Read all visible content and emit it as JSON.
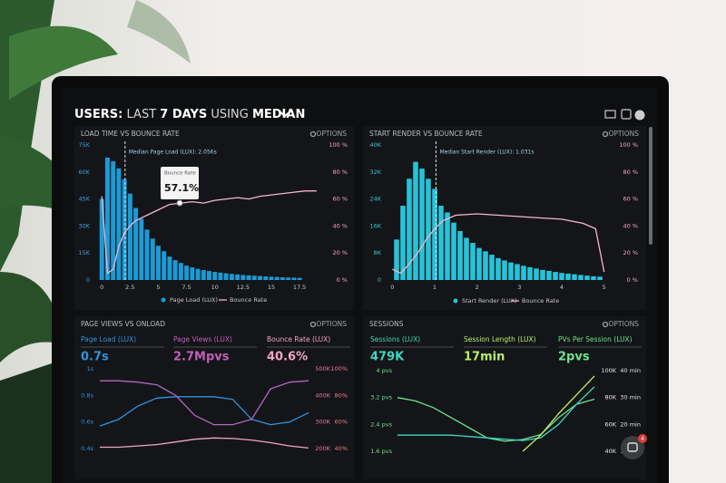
{
  "header": {
    "title": [
      "USERS:",
      "LAST",
      "7 DAYS",
      "USING",
      "MEDIAN"
    ]
  },
  "chat": {
    "badge": "4"
  },
  "panels": [
    {
      "title": "LOAD TIME VS BOUNCE RATE",
      "options": "OPTIONS",
      "xaxis": {
        "lim": [
          -0.5,
          19.5
        ],
        "ticks": [
          0,
          2.5,
          5,
          7.5,
          10,
          12.5,
          15,
          17.5
        ]
      },
      "scales": {
        "left": {
          "color": "#3aa6e0",
          "lim": [
            0,
            75000
          ],
          "ticks": [
            0,
            {
              "value": 15000,
              "label": "15K"
            },
            {
              "value": 30000,
              "label": "30K"
            },
            {
              "value": 45000,
              "label": "45K"
            },
            {
              "value": 60000,
              "label": "60K"
            },
            {
              "value": 75000,
              "label": "75K"
            }
          ]
        },
        "right": {
          "color": "#f2a6c0",
          "lim": [
            0,
            100
          ],
          "ticks": [
            {
              "value": 0,
              "label": "0 %"
            },
            {
              "value": 20,
              "label": "20 %"
            },
            {
              "value": 40,
              "label": "40 %"
            },
            {
              "value": 60,
              "label": "60 %"
            },
            {
              "value": 80,
              "label": "80 %"
            },
            {
              "value": 100,
              "label": "100 %"
            }
          ]
        }
      },
      "median": {
        "value": 2.056,
        "label": "Median Page Load (LUX): 2.056s"
      },
      "tooltip": {
        "label": "Bounce Rate",
        "value": "57.1%"
      },
      "bars": {
        "name": "Page Load (LUX)",
        "color": "#1c9ad6",
        "axis": "left",
        "x": [
          0,
          0.5,
          1,
          1.5,
          2,
          2.5,
          3,
          3.5,
          4,
          4.5,
          5,
          5.5,
          6,
          6.5,
          7,
          7.5,
          8,
          8.5,
          9,
          9.5,
          10,
          10.5,
          11,
          11.5,
          12,
          12.5,
          13,
          13.5,
          14,
          14.5,
          15,
          15.5,
          16,
          16.5,
          17,
          17.5
        ],
        "values": [
          45000,
          68000,
          66000,
          62000,
          56000,
          48000,
          40000,
          34000,
          28000,
          23000,
          19000,
          16000,
          13000,
          11000,
          9500,
          8000,
          7000,
          6200,
          5500,
          5000,
          4500,
          4100,
          3700,
          3400,
          3100,
          2800,
          2600,
          2400,
          2200,
          2000,
          1800,
          1700,
          1500,
          1400,
          1300,
          1200
        ]
      },
      "series": [
        {
          "name": "Bounce Rate",
          "color": "#f2b8cc",
          "axis": "right",
          "x": [
            0,
            0.5,
            1,
            1.5,
            2,
            2.5,
            3,
            4,
            5,
            6,
            7,
            8,
            9,
            10,
            11,
            12,
            13,
            14,
            15,
            16,
            17,
            18,
            19
          ],
          "values": [
            62,
            5,
            8,
            25,
            35,
            40,
            44,
            48,
            52,
            56,
            57,
            58,
            57,
            59,
            60,
            61,
            60,
            62,
            63,
            64,
            65,
            66,
            66
          ]
        }
      ]
    },
    {
      "title": "START RENDER VS BOUNCE RATE",
      "options": "OPTIONS",
      "xaxis": {
        "lim": [
          -0.2,
          5.2
        ],
        "ticks": [
          0,
          1,
          2,
          3,
          4,
          5
        ]
      },
      "scales": {
        "left": {
          "color": "#36c6d8",
          "lim": [
            0,
            40000
          ],
          "ticks": [
            0,
            {
              "value": 8000,
              "label": "8K"
            },
            {
              "value": 16000,
              "label": "16K"
            },
            {
              "value": 24000,
              "label": "24K"
            },
            {
              "value": 32000,
              "label": "32K"
            },
            {
              "value": 40000,
              "label": "40K"
            }
          ]
        },
        "right": {
          "color": "#f2a6c0",
          "lim": [
            0,
            100
          ],
          "ticks": [
            {
              "value": 0,
              "label": "0 %"
            },
            {
              "value": 20,
              "label": "20 %"
            },
            {
              "value": 40,
              "label": "40 %"
            },
            {
              "value": 60,
              "label": "60 %"
            },
            {
              "value": 80,
              "label": "80 %"
            },
            {
              "value": 100,
              "label": "100 %"
            }
          ]
        }
      },
      "median": {
        "value": 1.031,
        "label": "Median Start Render (LUX): 1.031s"
      },
      "bars": {
        "name": "Start Render (LUX)",
        "color": "#27c3d8",
        "axis": "left",
        "x": [
          0.1,
          0.25,
          0.4,
          0.55,
          0.7,
          0.85,
          1.0,
          1.15,
          1.3,
          1.45,
          1.6,
          1.75,
          1.9,
          2.05,
          2.2,
          2.35,
          2.5,
          2.65,
          2.8,
          2.95,
          3.1,
          3.25,
          3.4,
          3.55,
          3.7,
          3.85,
          4.0,
          4.15,
          4.3,
          4.45,
          4.6,
          4.75,
          4.9
        ],
        "values": [
          12000,
          22000,
          30000,
          35000,
          33000,
          30000,
          27000,
          22000,
          20000,
          17000,
          14500,
          12500,
          11000,
          9500,
          8500,
          7500,
          6500,
          5800,
          5200,
          4700,
          4200,
          3800,
          3400,
          3000,
          2700,
          2400,
          2100,
          1900,
          1700,
          1500,
          1300,
          1100,
          1000
        ]
      },
      "series": [
        {
          "name": "Bounce Rate",
          "color": "#f2b8cc",
          "axis": "right",
          "x": [
            0,
            0.2,
            0.4,
            0.6,
            0.8,
            1.0,
            1.2,
            1.5,
            2,
            2.5,
            3,
            3.5,
            4,
            4.5,
            4.8,
            5
          ],
          "values": [
            8,
            5,
            12,
            20,
            30,
            38,
            44,
            48,
            49,
            48,
            47,
            46,
            45,
            42,
            38,
            6
          ]
        }
      ]
    },
    {
      "title": "PAGE VIEWS VS ONLOAD",
      "options": "OPTIONS",
      "metrics": [
        {
          "name": "Page Load (LUX)",
          "value": "0.7s",
          "color": "#2f93e0"
        },
        {
          "name": "Page Views (LUX)",
          "value": "2.7Mpvs",
          "color": "#c060b8"
        },
        {
          "name": "Bounce Rate (LUX)",
          "value": "40.6%",
          "color": "#f2a6c0"
        }
      ],
      "scales": {
        "left": {
          "color": "#2f93e0",
          "lim": [
            0.4,
            1
          ],
          "ticks": [
            {
              "value": 1,
              "label": "1s"
            },
            {
              "value": 0.8,
              "label": "0.8s"
            },
            {
              "value": 0.6,
              "label": "0.6s"
            },
            {
              "value": 0.4,
              "label": "0.4s"
            }
          ]
        },
        "right1": {
          "color": "#e77aa6",
          "lim": [
            200000,
            500000
          ],
          "ticks": [
            {
              "value": 500000,
              "label": "500K"
            },
            {
              "value": 400000,
              "label": "400K"
            },
            {
              "value": 300000,
              "label": "300K"
            },
            {
              "value": 200000,
              "label": "200K"
            }
          ]
        },
        "right2": {
          "color": "#f07c8e",
          "lim": [
            40,
            100
          ],
          "ticks": [
            {
              "value": 100,
              "label": "100%"
            },
            {
              "value": 80,
              "label": "80%"
            },
            {
              "value": 60,
              "label": "60%"
            },
            {
              "value": 40,
              "label": "40%"
            }
          ]
        }
      },
      "series": [
        {
          "color": "#2f93e0",
          "axis": "left",
          "values": [
            0.57,
            0.62,
            0.72,
            0.78,
            0.79,
            0.79,
            0.79,
            0.77,
            0.62,
            0.58,
            0.6,
            0.67
          ]
        },
        {
          "color": "#b466c4",
          "axis": "right2",
          "values": [
            91,
            91,
            90,
            88,
            80,
            65,
            58,
            58,
            62,
            85,
            90,
            91
          ]
        },
        {
          "color": "#f2a6c0",
          "axis": "right1",
          "values": [
            205000,
            205000,
            210000,
            215000,
            225000,
            235000,
            240000,
            238000,
            232000,
            222000,
            210000,
            202000
          ]
        }
      ]
    },
    {
      "title": "SESSIONS",
      "options": "OPTIONS",
      "metrics": [
        {
          "name": "Sessions (LUX)",
          "value": "479K",
          "color": "#3fd6c0"
        },
        {
          "name": "Session Length (LUX)",
          "value": "17min",
          "color": "#b8f06a"
        },
        {
          "name": "PVs Per Session (LUX)",
          "value": "2pvs",
          "color": "#6ce38e"
        }
      ],
      "scales": {
        "left": {
          "color": "#6ce38e",
          "lim": [
            1.6,
            4
          ],
          "ticks": [
            {
              "value": 4,
              "label": "4 pvs"
            },
            {
              "value": 3.2,
              "label": "3.2 pvs"
            },
            {
              "value": 2.4,
              "label": "2.4 pvs"
            },
            {
              "value": 1.6,
              "label": "1.6 pvs"
            }
          ]
        },
        "right1": {
          "color": "#e6e6e6",
          "lim": [
            40000,
            100000
          ],
          "ticks": [
            {
              "value": 100000,
              "label": "100K"
            },
            {
              "value": 80000,
              "label": "80K"
            },
            {
              "value": 60000,
              "label": "60K"
            },
            {
              "value": 40000,
              "label": "40K"
            }
          ]
        },
        "right2": {
          "color": "#e6e6e6",
          "lim": [
            10,
            40
          ],
          "ticks": [
            {
              "value": 40,
              "label": "40 min"
            },
            {
              "value": 30,
              "label": "30 min"
            },
            {
              "value": 20,
              "label": "20 min"
            },
            {
              "value": 10,
              "label": "10 min"
            }
          ]
        }
      },
      "series": [
        {
          "color": "#6ce38e",
          "axis": "left",
          "values": [
            3.2,
            3.1,
            2.9,
            2.6,
            2.3,
            2.0,
            1.9,
            1.95,
            2.1,
            2.6,
            3.0,
            3.15
          ]
        },
        {
          "color": "#3fd6c0",
          "axis": "right1",
          "values": [
            52000,
            52000,
            52000,
            52000,
            51000,
            50000,
            49000,
            48000,
            50000,
            60000,
            75000,
            88000
          ]
        },
        {
          "color": "#c8f060",
          "axis": "right2",
          "values": [
            null,
            null,
            null,
            null,
            null,
            null,
            null,
            10,
            16,
            24,
            31,
            38
          ]
        }
      ]
    }
  ]
}
